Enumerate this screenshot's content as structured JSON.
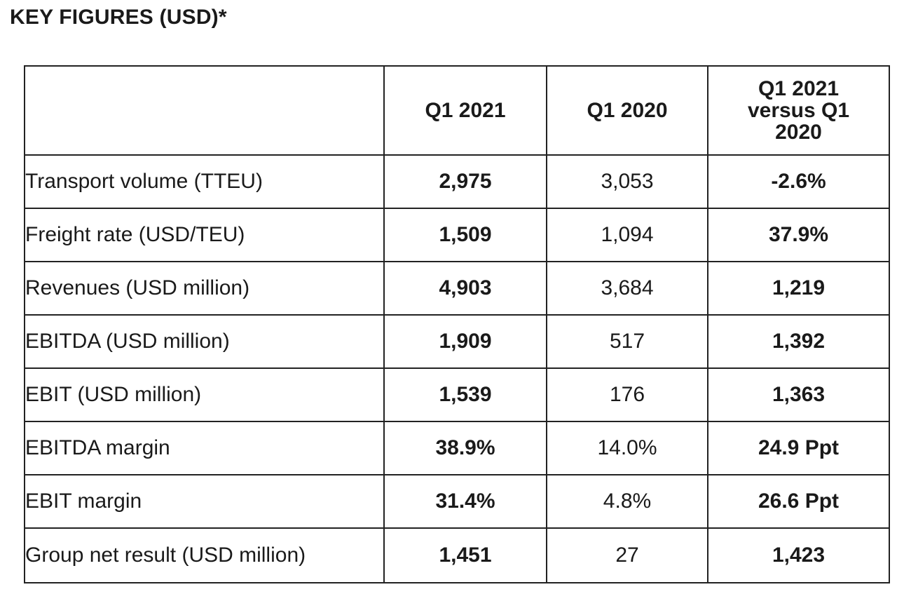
{
  "title": "KEY FIGURES (USD)*",
  "table": {
    "headers": [
      "",
      "Q1 2021",
      "Q1 2020",
      "Q1 2021 versus Q1 2020"
    ],
    "rows": [
      {
        "label": "Transport volume (TTEU)",
        "q1_2021": "2,975",
        "q1_2020": "3,053",
        "change": "-2.6%"
      },
      {
        "label": "Freight rate (USD/TEU)",
        "q1_2021": "1,509",
        "q1_2020": "1,094",
        "change": "37.9%"
      },
      {
        "label": "Revenues (USD million)",
        "q1_2021": "4,903",
        "q1_2020": "3,684",
        "change": "1,219"
      },
      {
        "label": "EBITDA (USD million)",
        "q1_2021": "1,909",
        "q1_2020": "517",
        "change": "1,392"
      },
      {
        "label": "EBIT (USD million)",
        "q1_2021": "1,539",
        "q1_2020": "176",
        "change": "1,363"
      },
      {
        "label": "EBITDA margin",
        "q1_2021": "38.9%",
        "q1_2020": "14.0%",
        "change": "24.9 Ppt"
      },
      {
        "label": "EBIT margin",
        "q1_2021": "31.4%",
        "q1_2020": "4.8%",
        "change": "26.6 Ppt"
      },
      {
        "label": "Group net result (USD million)",
        "q1_2021": "1,451",
        "q1_2020": "27",
        "change": "1,423"
      }
    ]
  }
}
